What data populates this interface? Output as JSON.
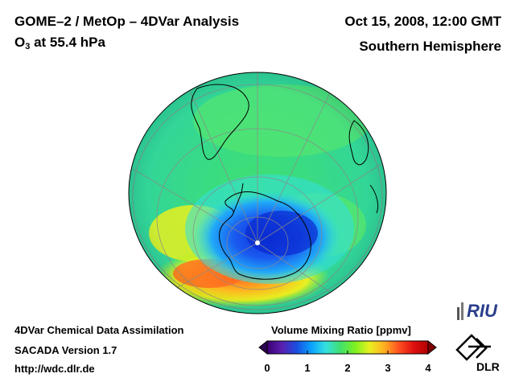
{
  "header": {
    "title": "GOME–2 / MetOp – 4DVar Analysis",
    "species": "O",
    "species_sub": "3",
    "level": "at 55.4 hPa",
    "datetime": "Oct 15, 2008, 12:00 GMT",
    "region": "Southern Hemisphere"
  },
  "footer": {
    "line1": "4DVar Chemical Data Assimilation",
    "line2": "SACADA Version 1.7",
    "line3": "http://wdc.dlr.de"
  },
  "colorbar": {
    "title": "Volume Mixing Ratio [ppmv]",
    "ticks": [
      "0",
      "1",
      "2",
      "3",
      "4"
    ],
    "min": 0,
    "max": 4,
    "colors": [
      "#3a0070",
      "#5a1fb0",
      "#1a4de0",
      "#0aa0ff",
      "#33e0e0",
      "#40e070",
      "#7cf020",
      "#e8f020",
      "#ffb020",
      "#ff5020",
      "#e01010",
      "#b00000"
    ]
  },
  "logos": {
    "riu": "RIU",
    "dlr": "DLR"
  },
  "map": {
    "projection": "orthographic",
    "hemisphere": "south",
    "ozone_hole_min_ppmv": 0.8,
    "collar_max_ppmv": 3.2,
    "background_ppmv": 2.0
  }
}
